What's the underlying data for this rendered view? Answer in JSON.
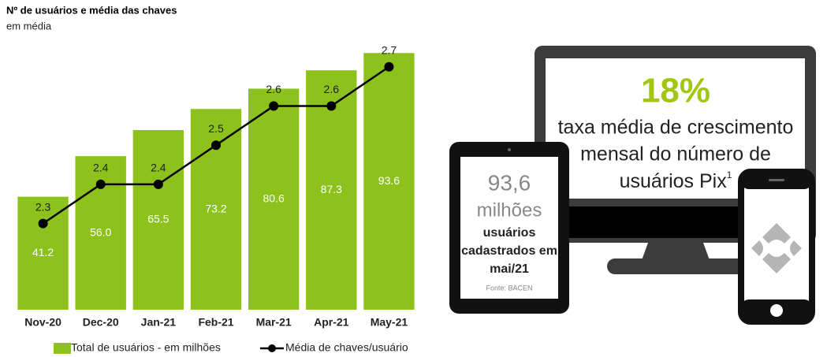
{
  "chart_data": {
    "type": "bar",
    "title": "Nº de usuários e média das chaves",
    "subtitle": "em média",
    "categories": [
      "Nov-20",
      "Dec-20",
      "Jan-21",
      "Feb-21",
      "Mar-21",
      "Apr-21",
      "May-21"
    ],
    "series": [
      {
        "name": "Total de usuários - em milhões",
        "type": "bar",
        "color": "#8cc21b",
        "values": [
          41.2,
          56.0,
          65.5,
          73.2,
          80.6,
          87.3,
          93.6
        ],
        "value_labels": [
          "41.2",
          "56.0",
          "65.5",
          "73.2",
          "80.6",
          "87.3",
          "93.6"
        ]
      },
      {
        "name": "Média de chaves/usuário",
        "type": "line",
        "color": "#000000",
        "axis": "y2",
        "values": [
          2.3,
          2.4,
          2.4,
          2.5,
          2.6,
          2.6,
          2.7
        ]
      }
    ],
    "ylim": [
      0,
      100
    ],
    "y2lim": [
      2.08,
      2.78
    ],
    "legend": "bottom"
  },
  "infographic": {
    "monitor": {
      "headline": "18%",
      "description": [
        "taxa média de crescimento",
        "mensal do número de",
        "usuários Pix"
      ],
      "footnote_mark": "1"
    },
    "tablet": {
      "value": "93,6",
      "unit": "milhões",
      "caption": [
        "usuários",
        "cadastrados em",
        "mai/21"
      ],
      "source": "Fonte: BACEN"
    }
  }
}
